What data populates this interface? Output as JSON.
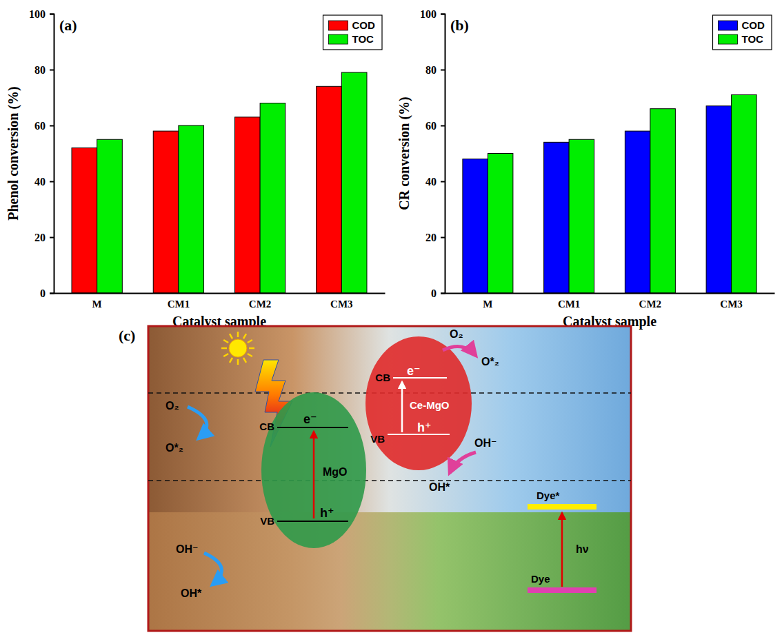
{
  "chart_data": [
    {
      "type": "bar",
      "title": "(a)",
      "x_label": "Catalyst sample",
      "y_label": "Phenol conversion (%)",
      "categories": [
        "M",
        "CM1",
        "CM2",
        "CM3"
      ],
      "series": [
        {
          "name": "COD",
          "color": "#ff0000",
          "values": [
            52,
            58,
            63,
            74
          ]
        },
        {
          "name": "TOC",
          "color": "#00ee00",
          "values": [
            55,
            60,
            68,
            79
          ]
        }
      ],
      "ylim": [
        0,
        100
      ],
      "yticks": [
        0,
        20,
        40,
        60,
        80,
        100
      ],
      "grid": false,
      "legend": "upper right"
    },
    {
      "type": "bar",
      "title": "(b)",
      "x_label": "Catalyst sample",
      "y_label": "CR conversion (%)",
      "categories": [
        "M",
        "CM1",
        "CM2",
        "CM3"
      ],
      "series": [
        {
          "name": "COD",
          "color": "#0000ff",
          "values": [
            48,
            54,
            58,
            67
          ]
        },
        {
          "name": "TOC",
          "color": "#00ee00",
          "values": [
            50,
            55,
            66,
            71
          ]
        }
      ],
      "ylim": [
        0,
        100
      ],
      "yticks": [
        0,
        20,
        40,
        60,
        80,
        100
      ],
      "grid": false,
      "legend": "upper right"
    }
  ],
  "diagram": {
    "panel": "(c)",
    "mgo": {
      "name": "MgO",
      "cb": "CB",
      "vb": "VB",
      "electron": "e⁻",
      "hole": "h⁺",
      "oxygen": "O₂",
      "superoxide": "O*₂",
      "hydroxide": "OH⁻",
      "radical": "OH*"
    },
    "ce_mgo": {
      "name": "Ce-MgO",
      "cb": "CB",
      "vb": "VB",
      "electron": "e⁻",
      "hole": "h⁺",
      "oxygen": "O₂",
      "superoxide": "O*₂",
      "hydroxide": "OH⁻",
      "radical": "OH*"
    },
    "dye": {
      "excited": "Dye*",
      "ground": "Dye",
      "light": "hν"
    }
  }
}
